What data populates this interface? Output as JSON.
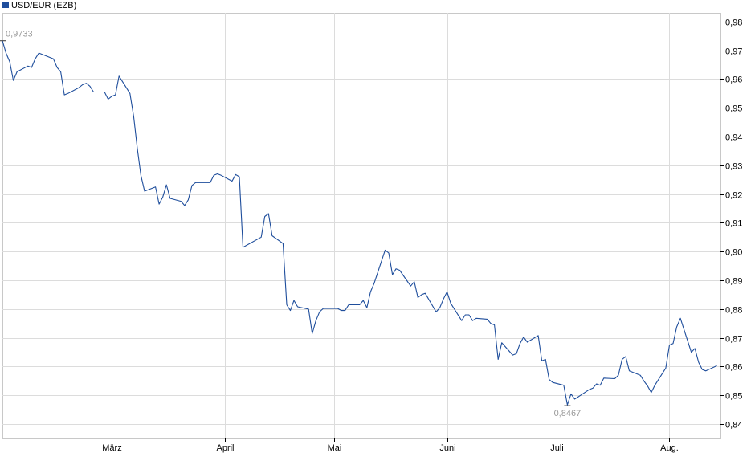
{
  "chart_data": {
    "type": "line",
    "legend": {
      "label": "USD/EUR (EZB)",
      "color": "#1f4e9c",
      "placement": "top-left"
    },
    "series": [
      {
        "name": "USD/EUR (EZB)",
        "color": "#1f4e9c",
        "points": [
          [
            "2023-01-30",
            0.9733
          ],
          [
            "2023-01-31",
            0.969
          ],
          [
            "2023-02-01",
            0.966
          ],
          [
            "2023-02-02",
            0.9595
          ],
          [
            "2023-02-03",
            0.9625
          ],
          [
            "2023-02-06",
            0.9645
          ],
          [
            "2023-02-07",
            0.964
          ],
          [
            "2023-02-08",
            0.967
          ],
          [
            "2023-02-09",
            0.969
          ],
          [
            "2023-02-10",
            0.9685
          ],
          [
            "2023-02-13",
            0.967
          ],
          [
            "2023-02-14",
            0.964
          ],
          [
            "2023-02-15",
            0.9625
          ],
          [
            "2023-02-16",
            0.9545
          ],
          [
            "2023-02-17",
            0.955
          ],
          [
            "2023-02-20",
            0.957
          ],
          [
            "2023-02-21",
            0.958
          ],
          [
            "2023-02-22",
            0.9585
          ],
          [
            "2023-02-23",
            0.9575
          ],
          [
            "2023-02-24",
            0.9555
          ],
          [
            "2023-02-27",
            0.9555
          ],
          [
            "2023-02-28",
            0.953
          ],
          [
            "2023-03-01",
            0.954
          ],
          [
            "2023-03-02",
            0.9545
          ],
          [
            "2023-03-03",
            0.961
          ],
          [
            "2023-03-06",
            0.955
          ],
          [
            "2023-03-07",
            0.947
          ],
          [
            "2023-03-08",
            0.936
          ],
          [
            "2023-03-09",
            0.9265
          ],
          [
            "2023-03-10",
            0.921
          ],
          [
            "2023-03-13",
            0.9225
          ],
          [
            "2023-03-14",
            0.9165
          ],
          [
            "2023-03-15",
            0.919
          ],
          [
            "2023-03-16",
            0.9232
          ],
          [
            "2023-03-17",
            0.9185
          ],
          [
            "2023-03-20",
            0.9175
          ],
          [
            "2023-03-21",
            0.916
          ],
          [
            "2023-03-22",
            0.918
          ],
          [
            "2023-03-23",
            0.923
          ],
          [
            "2023-03-24",
            0.924
          ],
          [
            "2023-03-27",
            0.924
          ],
          [
            "2023-03-28",
            0.924
          ],
          [
            "2023-03-29",
            0.9265
          ],
          [
            "2023-03-30",
            0.927
          ],
          [
            "2023-03-31",
            0.9265
          ],
          [
            "2023-04-03",
            0.9245
          ],
          [
            "2023-04-04",
            0.9268
          ],
          [
            "2023-04-05",
            0.926
          ],
          [
            "2023-04-06",
            0.9015
          ],
          [
            "2023-04-11",
            0.905
          ],
          [
            "2023-04-12",
            0.9122
          ],
          [
            "2023-04-13",
            0.9132
          ],
          [
            "2023-04-14",
            0.9055
          ],
          [
            "2023-04-17",
            0.9028
          ],
          [
            "2023-04-18",
            0.8815
          ],
          [
            "2023-04-19",
            0.8795
          ],
          [
            "2023-04-20",
            0.883
          ],
          [
            "2023-04-21",
            0.8808
          ],
          [
            "2023-04-24",
            0.88
          ],
          [
            "2023-04-25",
            0.8715
          ],
          [
            "2023-04-26",
            0.876
          ],
          [
            "2023-04-27",
            0.879
          ],
          [
            "2023-04-28",
            0.8802
          ],
          [
            "2023-05-02",
            0.8802
          ],
          [
            "2023-05-03",
            0.8795
          ],
          [
            "2023-05-04",
            0.8795
          ],
          [
            "2023-05-05",
            0.8815
          ],
          [
            "2023-05-08",
            0.8815
          ],
          [
            "2023-05-09",
            0.883
          ],
          [
            "2023-05-10",
            0.8805
          ],
          [
            "2023-05-11",
            0.886
          ],
          [
            "2023-05-12",
            0.889
          ],
          [
            "2023-05-15",
            0.9005
          ],
          [
            "2023-05-16",
            0.8995
          ],
          [
            "2023-05-17",
            0.892
          ],
          [
            "2023-05-18",
            0.894
          ],
          [
            "2023-05-19",
            0.8935
          ],
          [
            "2023-05-22",
            0.888
          ],
          [
            "2023-05-23",
            0.8895
          ],
          [
            "2023-05-24",
            0.884
          ],
          [
            "2023-05-25",
            0.885
          ],
          [
            "2023-05-26",
            0.8855
          ],
          [
            "2023-05-29",
            0.879
          ],
          [
            "2023-05-30",
            0.8805
          ],
          [
            "2023-05-31",
            0.8835
          ],
          [
            "2023-06-01",
            0.886
          ],
          [
            "2023-06-02",
            0.882
          ],
          [
            "2023-06-05",
            0.876
          ],
          [
            "2023-06-06",
            0.878
          ],
          [
            "2023-06-07",
            0.878
          ],
          [
            "2023-06-08",
            0.876
          ],
          [
            "2023-06-09",
            0.8768
          ],
          [
            "2023-06-12",
            0.8765
          ],
          [
            "2023-06-13",
            0.875
          ],
          [
            "2023-06-14",
            0.8745
          ],
          [
            "2023-06-15",
            0.8625
          ],
          [
            "2023-06-16",
            0.8683
          ],
          [
            "2023-06-19",
            0.864
          ],
          [
            "2023-06-20",
            0.8645
          ],
          [
            "2023-06-21",
            0.868
          ],
          [
            "2023-06-22",
            0.8703
          ],
          [
            "2023-06-23",
            0.8685
          ],
          [
            "2023-06-26",
            0.8708
          ],
          [
            "2023-06-27",
            0.862
          ],
          [
            "2023-06-28",
            0.8625
          ],
          [
            "2023-06-29",
            0.8555
          ],
          [
            "2023-06-30",
            0.8545
          ],
          [
            "2023-07-03",
            0.8535
          ],
          [
            "2023-07-04",
            0.8467
          ],
          [
            "2023-07-05",
            0.8505
          ],
          [
            "2023-07-06",
            0.8487
          ],
          [
            "2023-07-07",
            0.8495
          ],
          [
            "2023-07-10",
            0.852
          ],
          [
            "2023-07-11",
            0.8525
          ],
          [
            "2023-07-12",
            0.854
          ],
          [
            "2023-07-13",
            0.8535
          ],
          [
            "2023-07-14",
            0.856
          ],
          [
            "2023-07-17",
            0.8558
          ],
          [
            "2023-07-18",
            0.857
          ],
          [
            "2023-07-19",
            0.8625
          ],
          [
            "2023-07-20",
            0.8635
          ],
          [
            "2023-07-21",
            0.8585
          ],
          [
            "2023-07-24",
            0.857
          ],
          [
            "2023-07-25",
            0.855
          ],
          [
            "2023-07-26",
            0.8533
          ],
          [
            "2023-07-27",
            0.851
          ],
          [
            "2023-07-28",
            0.8535
          ],
          [
            "2023-07-31",
            0.8595
          ],
          [
            "2023-08-01",
            0.8675
          ],
          [
            "2023-08-02",
            0.868
          ],
          [
            "2023-08-03",
            0.8738
          ],
          [
            "2023-08-04",
            0.8768
          ],
          [
            "2023-08-07",
            0.865
          ],
          [
            "2023-08-08",
            0.8663
          ],
          [
            "2023-08-09",
            0.8615
          ],
          [
            "2023-08-10",
            0.859
          ],
          [
            "2023-08-11",
            0.8585
          ],
          [
            "2023-08-14",
            0.8603
          ]
        ]
      }
    ],
    "x_range": [
      "2023-01-30",
      "2023-08-15"
    ],
    "x_ticks": [
      {
        "date": "2023-03-01",
        "label": "März"
      },
      {
        "date": "2023-04-01",
        "label": "April"
      },
      {
        "date": "2023-05-01",
        "label": "Mai"
      },
      {
        "date": "2023-06-01",
        "label": "Juni"
      },
      {
        "date": "2023-07-01",
        "label": "Juli"
      },
      {
        "date": "2023-08-01",
        "label": "Aug."
      }
    ],
    "y_range": [
      0.835,
      0.983
    ],
    "y_ticks": [
      {
        "value": 0.84,
        "label": "0,84"
      },
      {
        "value": 0.85,
        "label": "0,85"
      },
      {
        "value": 0.86,
        "label": "0,86"
      },
      {
        "value": 0.87,
        "label": "0,87"
      },
      {
        "value": 0.88,
        "label": "0,88"
      },
      {
        "value": 0.89,
        "label": "0,89"
      },
      {
        "value": 0.9,
        "label": "0,90"
      },
      {
        "value": 0.91,
        "label": "0,91"
      },
      {
        "value": 0.92,
        "label": "0,92"
      },
      {
        "value": 0.93,
        "label": "0,93"
      },
      {
        "value": 0.94,
        "label": "0,94"
      },
      {
        "value": 0.95,
        "label": "0,95"
      },
      {
        "value": 0.96,
        "label": "0,96"
      },
      {
        "value": 0.97,
        "label": "0,97"
      },
      {
        "value": 0.98,
        "label": "0,98"
      }
    ],
    "y_axis_side": "right",
    "grid": true,
    "annotations": [
      {
        "date": "2023-01-30",
        "value": 0.9733,
        "label": "0,9733",
        "kind": "max"
      },
      {
        "date": "2023-07-04",
        "value": 0.8467,
        "label": "0,8467",
        "kind": "min"
      }
    ]
  }
}
